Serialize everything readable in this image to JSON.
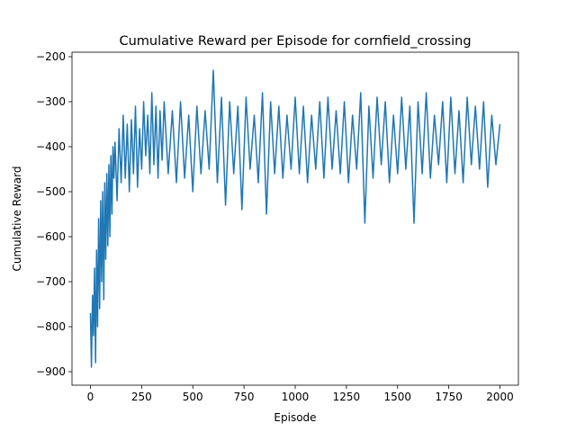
{
  "chart_data": {
    "type": "line",
    "title": "Cumulative Reward per Episode for cornfield_crossing",
    "xlabel": "Episode",
    "ylabel": "Cumulative Reward",
    "xlim": [
      -90,
      2090
    ],
    "ylim": [
      -930,
      -190
    ],
    "xticks": [
      0,
      250,
      500,
      750,
      1000,
      1250,
      1500,
      1750,
      2000
    ],
    "yticks": [
      -900,
      -800,
      -700,
      -600,
      -500,
      -400,
      -300,
      -200
    ],
    "grid": false,
    "series": [
      {
        "color": "#1f77b4",
        "x": [
          0,
          5,
          10,
          15,
          20,
          25,
          30,
          35,
          40,
          45,
          50,
          55,
          60,
          65,
          70,
          75,
          80,
          85,
          90,
          95,
          100,
          105,
          110,
          115,
          120,
          130,
          140,
          150,
          160,
          170,
          180,
          190,
          200,
          210,
          220,
          230,
          240,
          250,
          260,
          270,
          280,
          290,
          300,
          310,
          320,
          330,
          340,
          350,
          360,
          380,
          400,
          420,
          440,
          460,
          480,
          500,
          520,
          540,
          560,
          580,
          600,
          620,
          640,
          660,
          680,
          700,
          720,
          740,
          760,
          780,
          800,
          820,
          840,
          860,
          880,
          900,
          920,
          940,
          960,
          980,
          1000,
          1020,
          1040,
          1060,
          1080,
          1100,
          1120,
          1140,
          1160,
          1180,
          1200,
          1220,
          1240,
          1260,
          1280,
          1300,
          1320,
          1340,
          1360,
          1380,
          1400,
          1420,
          1440,
          1460,
          1480,
          1500,
          1520,
          1540,
          1560,
          1580,
          1600,
          1620,
          1640,
          1660,
          1680,
          1700,
          1720,
          1740,
          1760,
          1780,
          1800,
          1820,
          1840,
          1860,
          1880,
          1900,
          1920,
          1940,
          1960,
          1980,
          2000
        ],
        "values": [
          -770,
          -890,
          -730,
          -820,
          -670,
          -880,
          -630,
          -800,
          -560,
          -760,
          -520,
          -700,
          -500,
          -740,
          -480,
          -650,
          -460,
          -620,
          -440,
          -600,
          -420,
          -550,
          -400,
          -470,
          -390,
          -520,
          -360,
          -480,
          -330,
          -470,
          -350,
          -500,
          -340,
          -460,
          -310,
          -490,
          -360,
          -450,
          -300,
          -420,
          -330,
          -460,
          -280,
          -440,
          -310,
          -470,
          -320,
          -430,
          -300,
          -460,
          -320,
          -480,
          -300,
          -470,
          -330,
          -500,
          -310,
          -460,
          -320,
          -450,
          -230,
          -480,
          -290,
          -530,
          -300,
          -460,
          -310,
          -540,
          -290,
          -450,
          -330,
          -480,
          -280,
          -550,
          -300,
          -460,
          -310,
          -470,
          -330,
          -450,
          -290,
          -460,
          -310,
          -480,
          -330,
          -450,
          -300,
          -470,
          -290,
          -450,
          -320,
          -460,
          -300,
          -480,
          -330,
          -450,
          -280,
          -570,
          -310,
          -470,
          -290,
          -440,
          -300,
          -480,
          -330,
          -460,
          -290,
          -450,
          -310,
          -570,
          -300,
          -460,
          -280,
          -470,
          -330,
          -440,
          -300,
          -480,
          -290,
          -460,
          -320,
          -480,
          -290,
          -440,
          -310,
          -450,
          -300,
          -490,
          -330,
          -440,
          -350
        ]
      }
    ]
  }
}
